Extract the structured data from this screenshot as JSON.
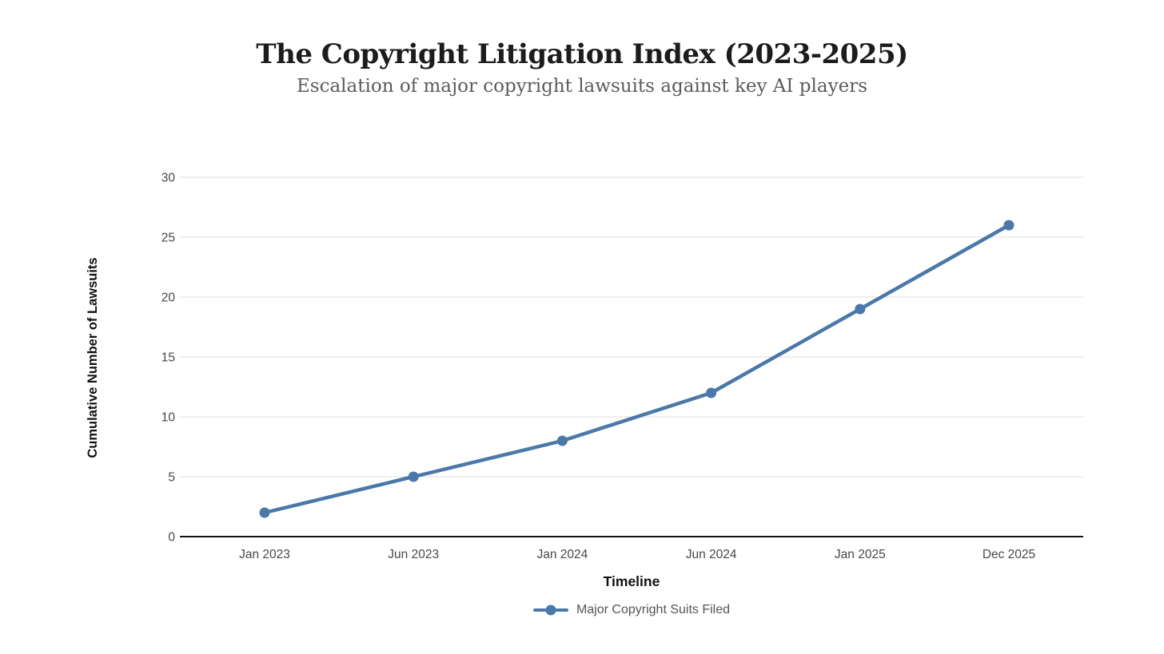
{
  "chart_data": {
    "type": "line",
    "title": "The Copyright Litigation Index (2023-2025)",
    "subtitle": "Escalation of major copyright lawsuits against key AI players",
    "categories": [
      "Jan 2023",
      "Jun 2023",
      "Jan 2024",
      "Jun 2024",
      "Jan 2025",
      "Dec 2025"
    ],
    "series": [
      {
        "name": "Major Copyright Suits Filed",
        "values": [
          2,
          5,
          8,
          12,
          19,
          26
        ]
      }
    ],
    "xlabel": "Timeline",
    "ylabel": "Cumulative Number of Lawsuits",
    "ylim": [
      0,
      30
    ],
    "yticks": [
      0,
      5,
      10,
      15,
      20,
      25,
      30
    ],
    "grid": true,
    "legend_position": "bottom",
    "marker": "circle",
    "colors": {
      "line": "#4a78a8",
      "point": "#4a78a8",
      "grid": "#e8e8e8",
      "axis": "#111111",
      "tick_text": "#474747",
      "title_text": "#1c1c1c",
      "subtitle_text": "#5b5b5b",
      "legend_text": "#555555",
      "background": "#ffffff"
    }
  }
}
